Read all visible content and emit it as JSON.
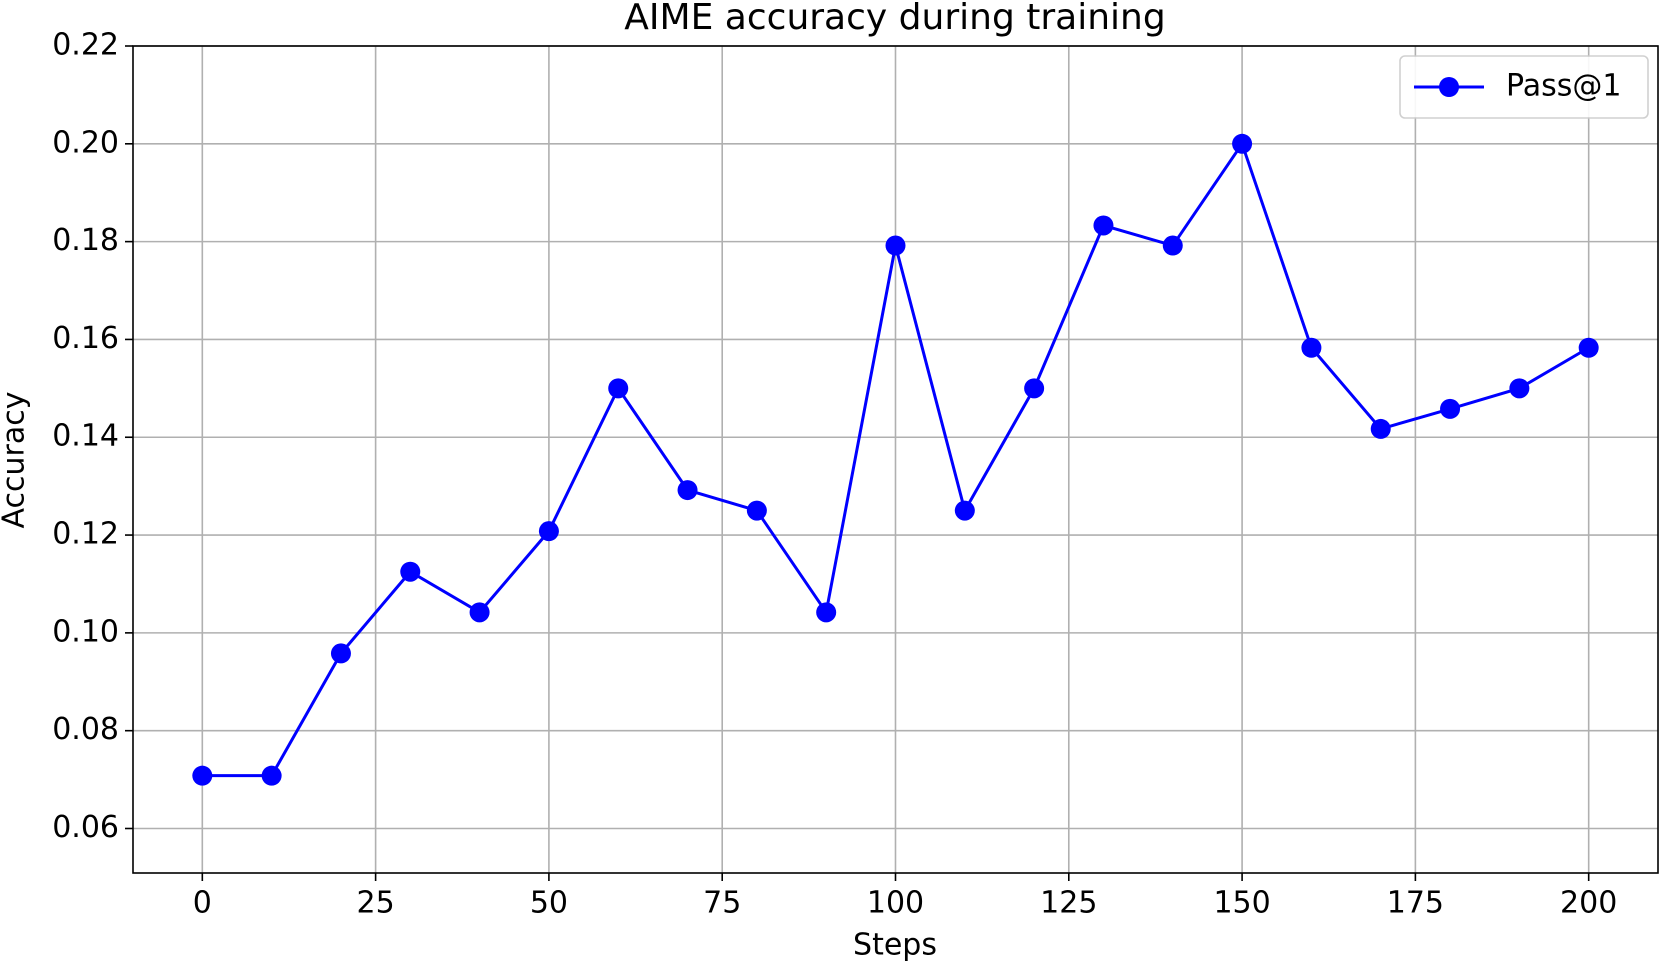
{
  "chart_data": {
    "type": "line",
    "title": "AIME accuracy during training",
    "x_label": "Steps",
    "y_label": "Accuracy",
    "x": [
      0,
      10,
      20,
      30,
      40,
      50,
      60,
      70,
      80,
      90,
      100,
      110,
      120,
      130,
      140,
      150,
      160,
      170,
      180,
      190,
      200
    ],
    "series": [
      {
        "name": "Pass@1",
        "color": "#0000ff",
        "values": [
          0.0708,
          0.0708,
          0.0958,
          0.1125,
          0.1042,
          0.1208,
          0.15,
          0.1292,
          0.125,
          0.1042,
          0.1792,
          0.125,
          0.15,
          0.1833,
          0.1792,
          0.2,
          0.1583,
          0.1417,
          0.1458,
          0.15,
          0.1583
        ]
      }
    ],
    "xlim": [
      -10,
      210
    ],
    "ylim": [
      0.0509,
      0.22
    ],
    "xticks": [
      0,
      25,
      50,
      75,
      100,
      125,
      150,
      175,
      200
    ],
    "yticks": [
      {
        "value": 0.06,
        "label": "0.06"
      },
      {
        "value": 0.08,
        "label": "0.08"
      },
      {
        "value": 0.1,
        "label": "0.10"
      },
      {
        "value": 0.12,
        "label": "0.12"
      },
      {
        "value": 0.14,
        "label": "0.14"
      },
      {
        "value": 0.16,
        "label": "0.16"
      },
      {
        "value": 0.18,
        "label": "0.18"
      },
      {
        "value": 0.2,
        "label": "0.20"
      },
      {
        "value": 0.22,
        "label": "0.22"
      }
    ],
    "grid": true,
    "legend": "upper right"
  }
}
